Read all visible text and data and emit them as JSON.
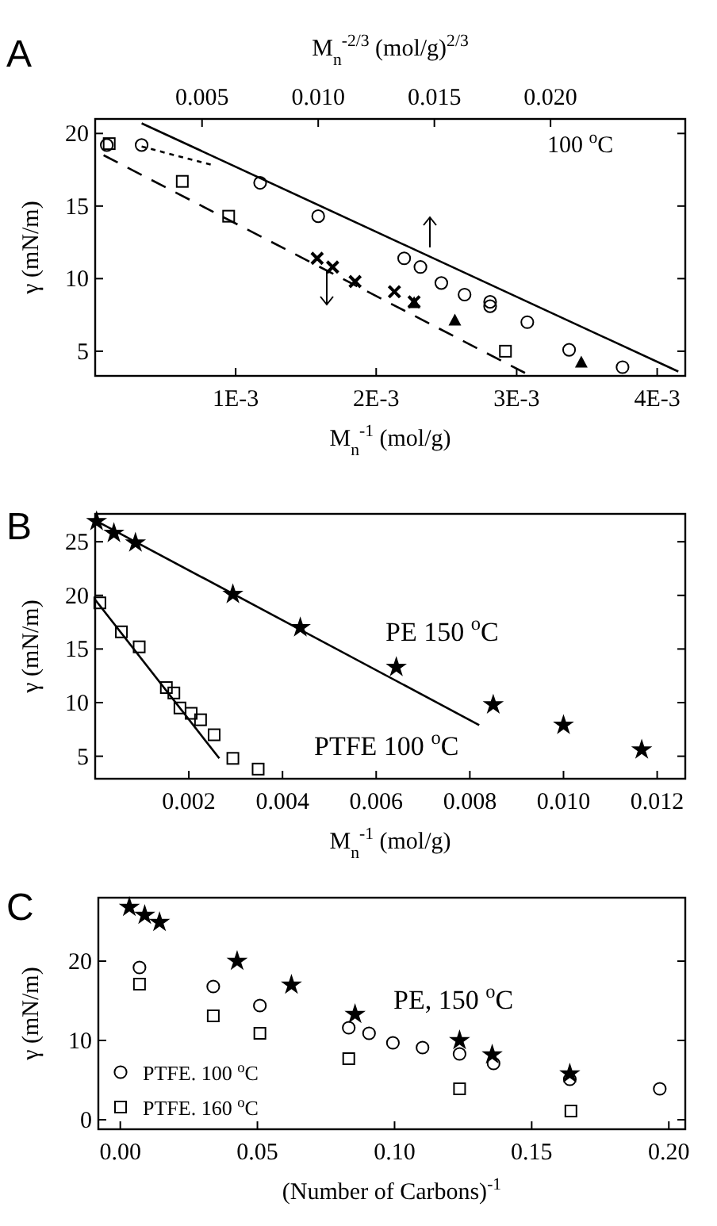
{
  "chart_data": [
    {
      "type": "scatter",
      "title": "A",
      "xlabel": "M$_{n}$$^{-1}$ (mol/g)",
      "x2label": "M$_{n}$$^{-2/3}$ (mol/g)$^{2/3}$",
      "ylabel": "γ (mN/m)",
      "annotations": [
        "100 $^{o}$C"
      ],
      "xlim": [
        0,
        0.0042
      ],
      "xticks": [
        {
          "value": 0.001,
          "label": "1E-3"
        },
        {
          "value": 0.002,
          "label": "2E-3"
        },
        {
          "value": 0.003,
          "label": "3E-3"
        },
        {
          "value": 0.004,
          "label": "4E-3"
        }
      ],
      "x2lim": [
        0.0004,
        0.0258
      ],
      "x2ticks": [
        0.005,
        {
          "value": 0.01,
          "label": "0.010"
        },
        0.015,
        {
          "value": 0.02,
          "label": "0.020"
        }
      ],
      "ylim": [
        3.3,
        21
      ],
      "yticks": [
        5,
        10,
        15,
        20
      ],
      "legend": false,
      "series": [
        {
          "type": "scatter",
          "marker": "circle",
          "axis": "x2",
          "color": "#000000",
          "x": [
            0.0009,
            0.0024,
            0.0075,
            0.01,
            0.0137,
            0.0144,
            0.0153,
            0.0163,
            0.0174,
            0.0174,
            0.019,
            0.0208,
            0.0231
          ],
          "values": [
            19.2,
            19.2,
            16.6,
            14.3,
            11.4,
            10.8,
            9.7,
            8.9,
            8.4,
            8.1,
            7.0,
            5.1,
            3.9
          ]
        },
        {
          "type": "scatter",
          "marker": "square",
          "color": "#000000",
          "x": [
            0.0001,
            0.00062,
            0.00095,
            0.00292
          ],
          "values": [
            19.3,
            16.7,
            14.3,
            5.0
          ]
        },
        {
          "type": "scatter",
          "marker": "cross",
          "color": "#000000",
          "x": [
            0.00158,
            0.00169,
            0.00185,
            0.00213,
            0.00227
          ],
          "values": [
            11.4,
            10.8,
            9.8,
            9.1,
            8.4
          ]
        },
        {
          "type": "scatter",
          "marker": "triangle",
          "color": "#000000",
          "x": [
            0.00227,
            0.00256,
            0.00346
          ],
          "values": [
            8.3,
            7.1,
            4.2
          ]
        },
        {
          "type": "line",
          "axis": "x2",
          "line_style": "solid",
          "color": "#000000",
          "x": [
            0.0024,
            0.0255
          ],
          "values": [
            20.7,
            3.6
          ]
        },
        {
          "type": "line",
          "line_style": "dashed",
          "color": "#000000",
          "x": [
            6e-05,
            0.00306
          ],
          "values": [
            18.5,
            3.5
          ]
        },
        {
          "type": "line",
          "axis": "x2",
          "line_style": "dotted",
          "color": "#000000",
          "x": [
            0.0024,
            0.0055
          ],
          "values": [
            19.1,
            17.8
          ]
        }
      ]
    },
    {
      "type": "scatter",
      "title": "B",
      "xlabel": "M$_{n}$$^{-1}$ (mol/g)",
      "ylabel": "γ (mN/m)",
      "annotations": [
        "PE 150 $^{o}$C",
        "PTFE 100 $^{o}$C"
      ],
      "xlim": [
        0,
        0.0126
      ],
      "xticks": [
        {
          "value": 0.002,
          "label": "0.002"
        },
        {
          "value": 0.004,
          "label": "0.004"
        },
        {
          "value": 0.006,
          "label": "0.006"
        },
        {
          "value": 0.008,
          "label": "0.008"
        },
        {
          "value": 0.01,
          "label": "0.010"
        },
        {
          "value": 0.012,
          "label": "0.012"
        }
      ],
      "ylim": [
        2.9,
        27.6
      ],
      "yticks": [
        5,
        10,
        15,
        20,
        25
      ],
      "legend": false,
      "series": [
        {
          "type": "scatter",
          "marker": "star",
          "color": "#000000",
          "x": [
            3e-05,
            0.0004,
            0.00086,
            0.00294,
            0.00438,
            0.00643,
            0.0085,
            0.01,
            0.01167
          ],
          "values": [
            26.9,
            25.8,
            24.9,
            20.1,
            17.0,
            13.3,
            9.8,
            7.9,
            5.6
          ]
        },
        {
          "type": "scatter",
          "marker": "square",
          "color": "#000000",
          "x": [
            0.0001,
            0.00056,
            0.00094,
            0.00152,
            0.00168,
            0.00181,
            0.00205,
            0.00225,
            0.00254,
            0.00294,
            0.00348
          ],
          "values": [
            19.3,
            16.6,
            15.2,
            11.4,
            10.9,
            9.5,
            9.0,
            8.4,
            7.0,
            4.8,
            3.8
          ]
        },
        {
          "type": "line",
          "line_style": "solid",
          "color": "#000000",
          "x": [
            0,
            0.0082
          ],
          "values": [
            27,
            7.9
          ]
        },
        {
          "type": "line",
          "line_style": "solid",
          "color": "#000000",
          "x": [
            0,
            0.00265
          ],
          "values": [
            19.6,
            4.8
          ]
        }
      ]
    },
    {
      "type": "scatter",
      "title": "C",
      "xlabel": "(Number of Carbons)$^{-1}$",
      "ylabel": "γ (mN/m)",
      "annotations": [
        "PE, 150 $^{o}$C"
      ],
      "xlim": [
        -0.008,
        0.206
      ],
      "xticks": [
        {
          "value": 0,
          "label": "0.00"
        },
        {
          "value": 0.05,
          "label": "0.05"
        },
        {
          "value": 0.1,
          "label": "0.10"
        },
        {
          "value": 0.15,
          "label": "0.15"
        },
        {
          "value": 0.2,
          "label": "0.20"
        }
      ],
      "ylim": [
        -1.2,
        28
      ],
      "yticks": [
        0,
        10,
        20
      ],
      "legend": "bottom left",
      "series": [
        {
          "type": "scatter",
          "marker": "star",
          "color": "#000000",
          "x": [
            0.0033,
            0.0089,
            0.0143,
            0.0426,
            0.0624,
            0.0856,
            0.1237,
            0.1356,
            0.1639
          ],
          "values": [
            26.8,
            25.8,
            24.9,
            20.0,
            17.0,
            13.3,
            10.0,
            8.2,
            5.8
          ]
        },
        {
          "type": "scatter",
          "marker": "circle",
          "name": "PTFE. 100 $^{o}$C",
          "color": "#000000",
          "x": [
            0.007,
            0.0339,
            0.0509,
            0.0833,
            0.0907,
            0.0994,
            0.1102,
            0.1237,
            0.1361,
            0.1639,
            0.1967
          ],
          "values": [
            19.2,
            16.8,
            14.4,
            11.6,
            10.9,
            9.7,
            9.1,
            8.3,
            7.1,
            5.1,
            3.9
          ]
        },
        {
          "type": "scatter",
          "marker": "square",
          "name": "PTFE. 160 $^{o}$C",
          "color": "#000000",
          "x": [
            0.007,
            0.0339,
            0.0509,
            0.0833,
            0.1237,
            0.1643
          ],
          "values": [
            17.1,
            13.1,
            10.9,
            7.7,
            3.9,
            1.1
          ]
        }
      ]
    }
  ]
}
